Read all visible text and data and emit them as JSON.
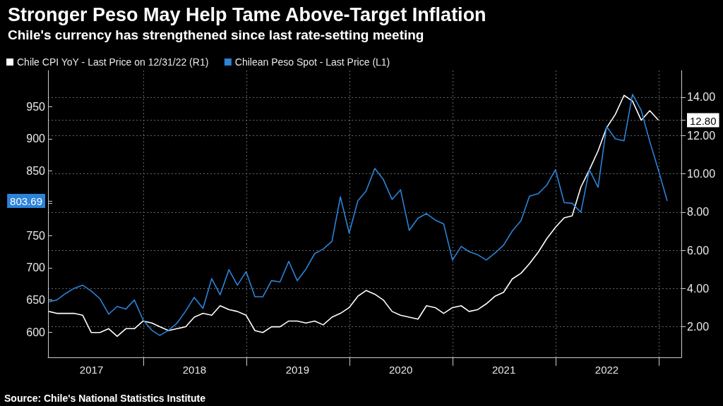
{
  "chart_data": {
    "type": "line",
    "title": "Stronger Peso May Help Tame Above-Target Inflation",
    "subtitle": "Chile's currency has strengthened since last rate-setting meeting",
    "x": [
      "2017-01-31",
      "2017-02-28",
      "2017-03-31",
      "2017-04-30",
      "2017-05-31",
      "2017-06-30",
      "2017-07-31",
      "2017-08-31",
      "2017-09-30",
      "2017-10-31",
      "2017-11-30",
      "2017-12-31",
      "2018-01-31",
      "2018-02-28",
      "2018-03-31",
      "2018-04-30",
      "2018-05-31",
      "2018-06-30",
      "2018-07-31",
      "2018-08-31",
      "2018-09-30",
      "2018-10-31",
      "2018-11-30",
      "2018-12-31",
      "2019-01-31",
      "2019-02-28",
      "2019-03-31",
      "2019-04-30",
      "2019-05-31",
      "2019-06-30",
      "2019-07-31",
      "2019-08-31",
      "2019-09-30",
      "2019-10-31",
      "2019-11-30",
      "2019-12-31",
      "2020-01-31",
      "2020-02-29",
      "2020-03-31",
      "2020-04-30",
      "2020-05-31",
      "2020-06-30",
      "2020-07-31",
      "2020-08-31",
      "2020-09-30",
      "2020-10-31",
      "2020-11-30",
      "2020-12-31",
      "2021-01-31",
      "2021-02-28",
      "2021-03-31",
      "2021-04-30",
      "2021-05-31",
      "2021-06-30",
      "2021-07-31",
      "2021-08-31",
      "2021-09-30",
      "2021-10-31",
      "2021-11-30",
      "2021-12-31",
      "2022-01-31",
      "2022-02-28",
      "2022-03-31",
      "2022-04-30",
      "2022-05-31",
      "2022-06-30",
      "2022-07-31",
      "2022-08-31",
      "2022-09-30",
      "2022-10-31",
      "2022-11-30",
      "2022-12-31",
      "2023-01-31"
    ],
    "series": [
      {
        "name": "Chile CPI YoY - Last Price on 12/31/22 (R1)",
        "color": "#ffffff",
        "axis": "y2",
        "values": [
          2.8,
          2.7,
          2.7,
          2.7,
          2.6,
          1.7,
          1.7,
          1.9,
          1.5,
          1.9,
          1.9,
          2.3,
          2.2,
          2.0,
          1.8,
          1.9,
          2.0,
          2.5,
          2.7,
          2.6,
          3.1,
          2.9,
          2.8,
          2.6,
          1.8,
          1.7,
          2.0,
          2.0,
          2.3,
          2.3,
          2.2,
          2.3,
          2.1,
          2.5,
          2.7,
          3.0,
          3.6,
          3.9,
          3.7,
          3.4,
          2.8,
          2.6,
          2.5,
          2.4,
          3.1,
          3.0,
          2.7,
          3.0,
          3.1,
          2.8,
          2.9,
          3.2,
          3.6,
          3.8,
          4.5,
          4.8,
          5.3,
          5.9,
          6.6,
          7.2,
          7.7,
          7.8,
          9.3,
          10.2,
          11.2,
          12.4,
          13.1,
          14.1,
          13.8,
          12.8,
          13.3,
          12.8,
          null
        ]
      },
      {
        "name": "Chilean Peso Spot - Last Price (L1)",
        "color": "#2b83da",
        "values": [
          647,
          650,
          660,
          668,
          673,
          664,
          652,
          628,
          640,
          636,
          650,
          619,
          603,
          595,
          603,
          614,
          633,
          654,
          637,
          683,
          658,
          697,
          673,
          694,
          655,
          655,
          680,
          678,
          710,
          680,
          698,
          722,
          729,
          741,
          810,
          754,
          804,
          819,
          854,
          837,
          806,
          821,
          758,
          777,
          784,
          774,
          768,
          712,
          733,
          725,
          720,
          712,
          723,
          735,
          757,
          773,
          811,
          815,
          828,
          852,
          801,
          800,
          786,
          852,
          825,
          919,
          900,
          897,
          969,
          944,
          896,
          851,
          803.69
        ]
      }
    ],
    "xlim": [
      "2017-01-28",
      "2023-03-22"
    ],
    "xticks": [
      {
        "value": "2017-07-01",
        "label": "2017"
      },
      {
        "value": "2018-01-01",
        "label": null
      },
      {
        "value": "2018-07-01",
        "label": "2018"
      },
      {
        "value": "2019-01-01",
        "label": null
      },
      {
        "value": "2019-07-01",
        "label": "2019"
      },
      {
        "value": "2020-01-01",
        "label": null
      },
      {
        "value": "2020-07-01",
        "label": "2020"
      },
      {
        "value": "2021-01-01",
        "label": null
      },
      {
        "value": "2021-07-01",
        "label": "2021"
      },
      {
        "value": "2022-01-01",
        "label": null
      },
      {
        "value": "2022-07-01",
        "label": "2022"
      },
      {
        "value": "2023-01-01",
        "label": null
      }
    ],
    "ylim": [
      561,
      1006
    ],
    "yticks": [
      600,
      650,
      700,
      750,
      {
        "value": 800,
        "label": null
      },
      {
        "value": 803.69,
        "label": "803.69"
      },
      850,
      900,
      950
    ],
    "y2lim": [
      0.4,
      15.4
    ],
    "y2ticks": [
      {
        "value": 2,
        "label": "2.00"
      },
      {
        "value": 4,
        "label": "4.00"
      },
      {
        "value": 6,
        "label": "6.00"
      },
      {
        "value": 8,
        "label": "8.00"
      },
      {
        "value": 10,
        "label": "10.00"
      },
      {
        "value": 12,
        "label": "12.00"
      },
      {
        "value": 12.8,
        "label": "12.80"
      },
      {
        "value": 14,
        "label": "14.00"
      }
    ],
    "grid": true,
    "legend": "top left",
    "annotations": [
      "Source: Chile's National Statistics Institute"
    ]
  }
}
